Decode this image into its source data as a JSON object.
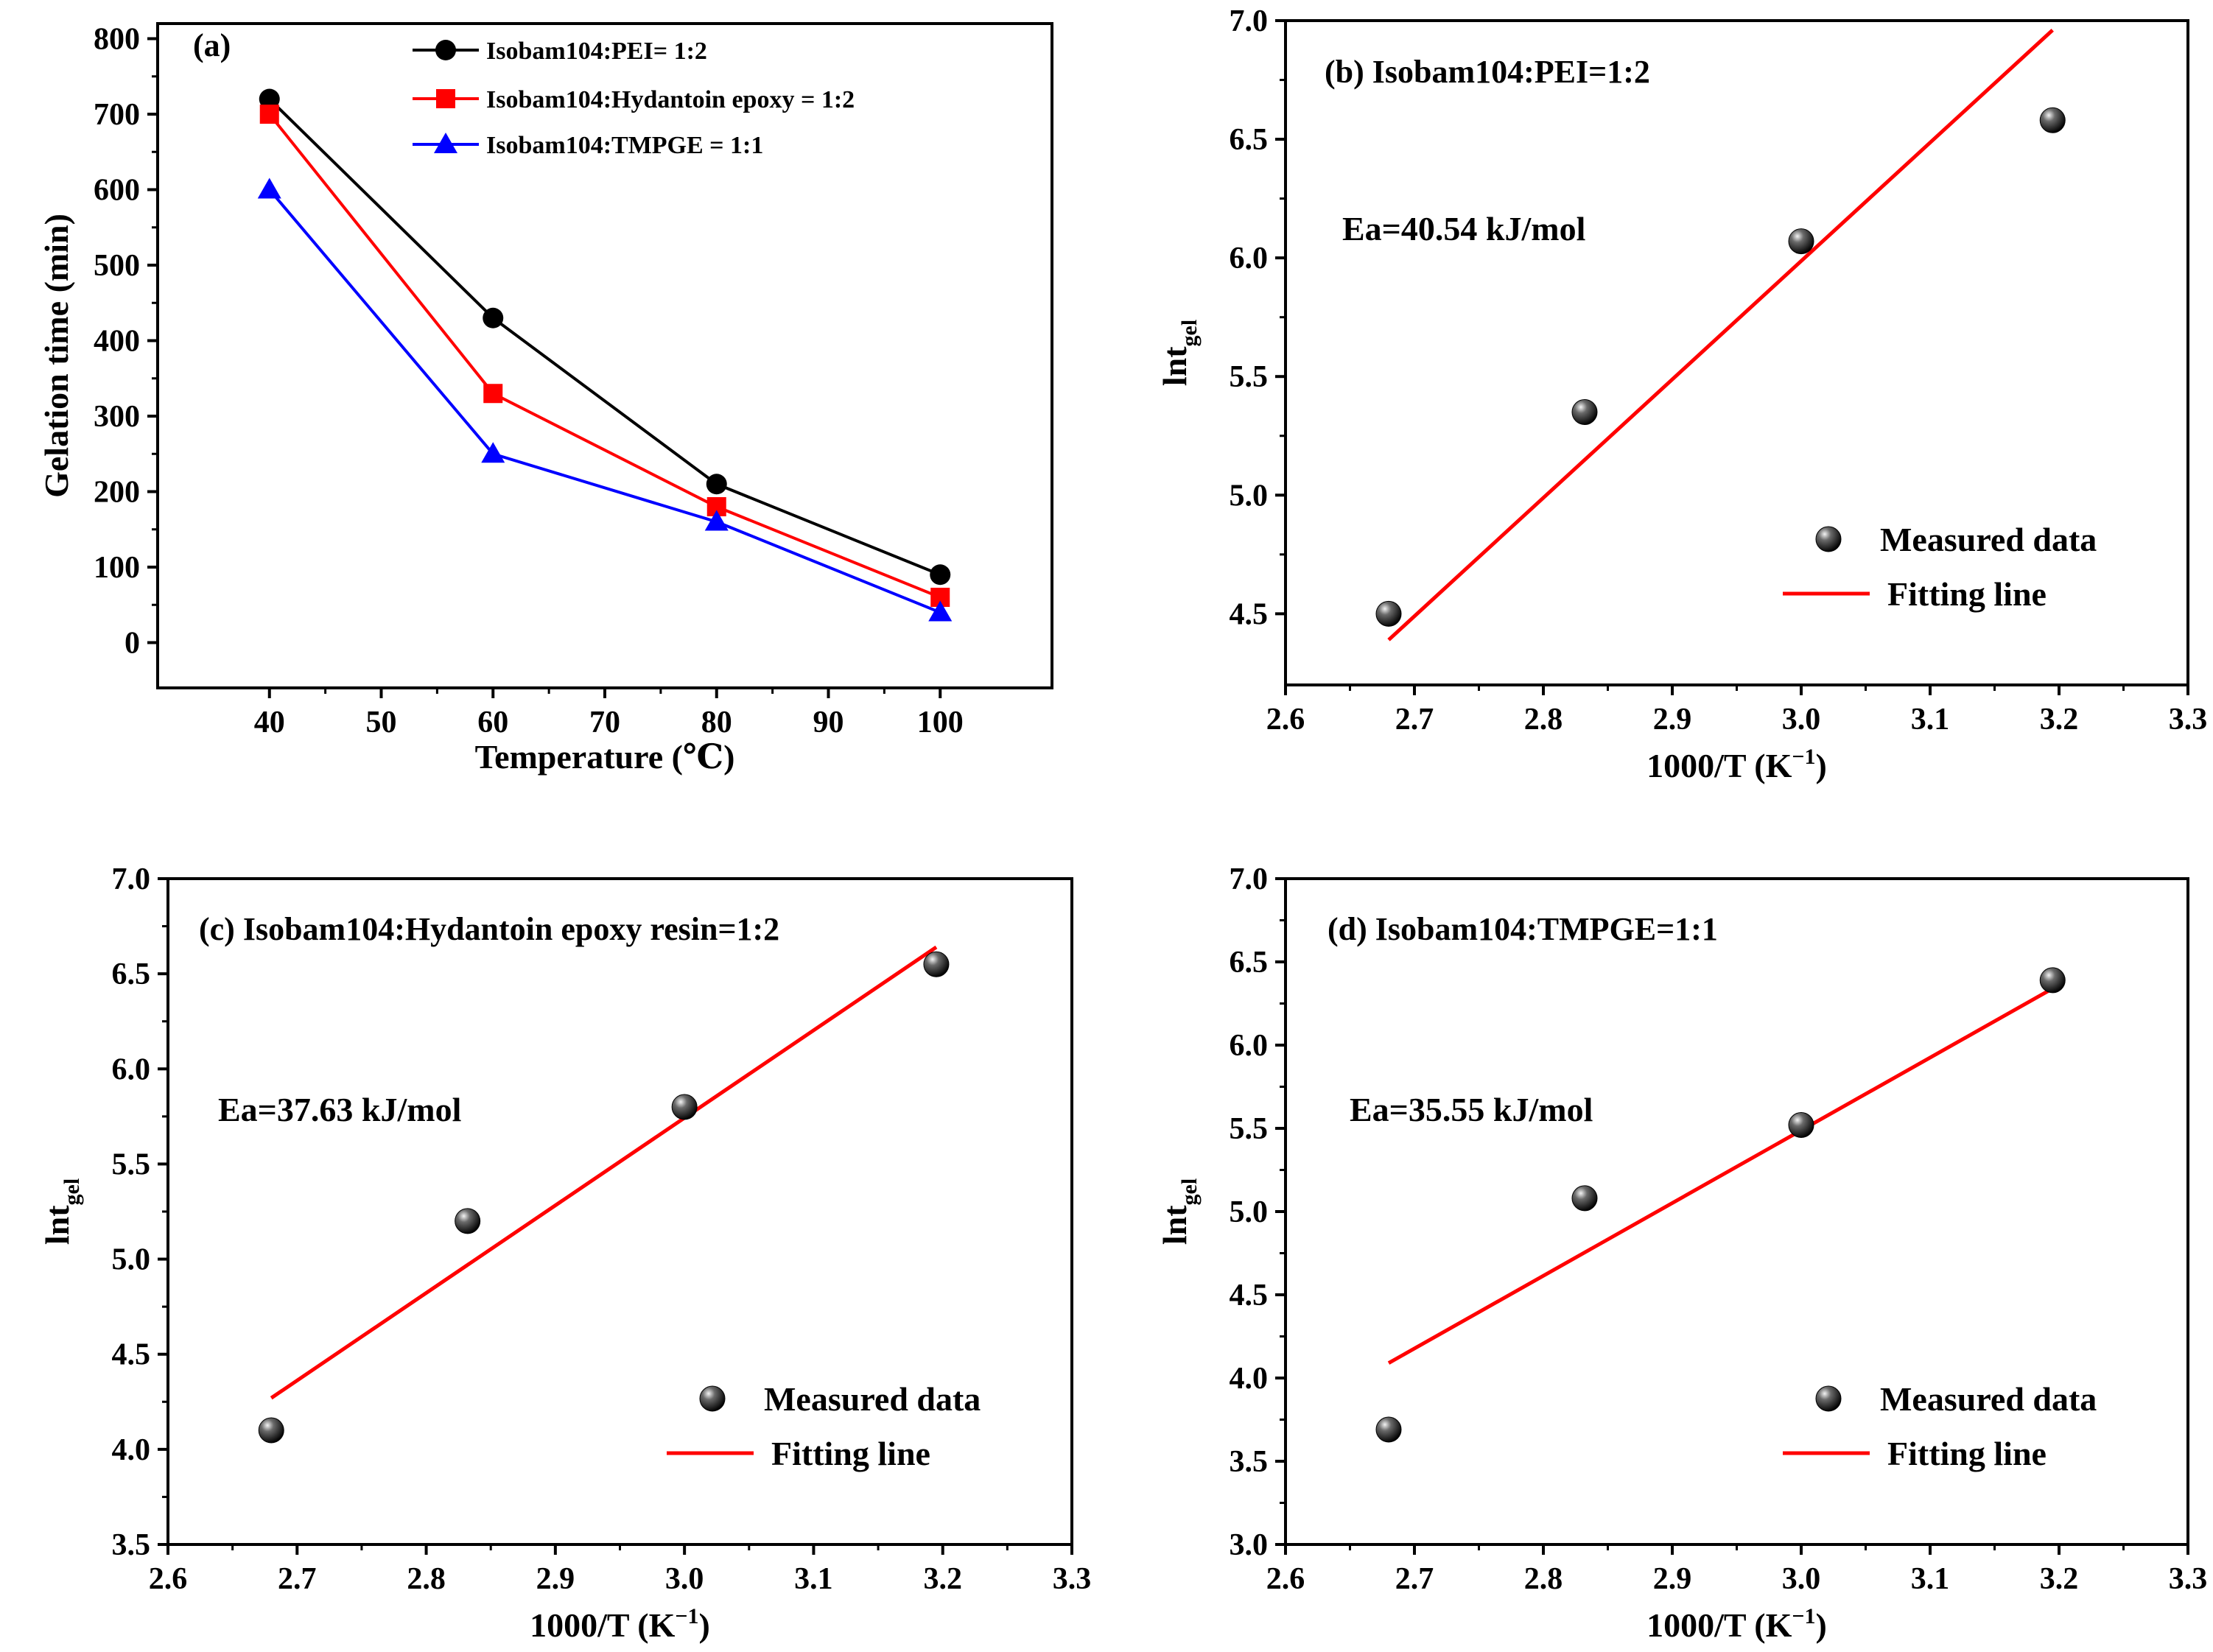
{
  "chart_data": [
    {
      "id": "a",
      "type": "line",
      "panel_label": "(a)",
      "xlabel": "Temperature (℃)",
      "ylabel": "Gelation time (min)",
      "xlim": [
        30,
        110
      ],
      "ylim": [
        -60,
        820
      ],
      "xticks": [
        40,
        50,
        60,
        70,
        80,
        90,
        100
      ],
      "yticks": [
        0,
        100,
        200,
        300,
        400,
        500,
        600,
        700,
        800
      ],
      "legend_position": "top-right",
      "series": [
        {
          "name": "Isobam104:PEI= 1:2",
          "color": "#000000",
          "marker": "circle",
          "x": [
            40,
            60,
            80,
            100
          ],
          "y": [
            720,
            430,
            210,
            90
          ]
        },
        {
          "name": "Isobam104:Hydantoin epoxy = 1:2",
          "color": "#ff0000",
          "marker": "square",
          "x": [
            40,
            60,
            80,
            100
          ],
          "y": [
            700,
            330,
            180,
            60
          ]
        },
        {
          "name": "Isobam104:TMPGE = 1:1",
          "color": "#0000ff",
          "marker": "triangle",
          "x": [
            40,
            60,
            80,
            100
          ],
          "y": [
            600,
            250,
            160,
            40
          ]
        }
      ]
    },
    {
      "id": "b",
      "type": "scatter",
      "panel_label": "(b) Isobam104:PEI=1:2",
      "annotation": "Ea=40.54 kJ/mol",
      "xlabel_main": "1000/T (K",
      "xlabel_sup": "−1",
      "xlabel_close": ")",
      "ylabel_main": "lnt",
      "ylabel_sub": "gel",
      "xlim": [
        2.6,
        3.3
      ],
      "ylim": [
        4.2,
        7.0
      ],
      "xticks": [
        "2.6",
        "2.7",
        "2.8",
        "2.9",
        "3.0",
        "3.1",
        "3.2",
        "3.3"
      ],
      "yticks": [
        "4.5",
        "5.0",
        "5.5",
        "6.0",
        "6.5",
        "7.0"
      ],
      "measured": {
        "x": [
          2.68,
          2.832,
          3.0,
          3.195
        ],
        "y": [
          4.5,
          5.35,
          6.07,
          6.58
        ]
      },
      "fit": {
        "x": [
          2.68,
          3.195
        ],
        "y": [
          4.39,
          6.96
        ]
      },
      "legend": {
        "measured_label": "Measured data",
        "fit_label": "Fitting line"
      },
      "fit_color": "#ff0000"
    },
    {
      "id": "c",
      "type": "scatter",
      "panel_label": "(c) Isobam104:Hydantoin epoxy resin=1:2",
      "annotation": "Ea=37.63 kJ/mol",
      "xlabel_main": "1000/T (K",
      "xlabel_sup": "−1",
      "xlabel_close": ")",
      "ylabel_main": "lnt",
      "ylabel_sub": "gel",
      "xlim": [
        2.6,
        3.3
      ],
      "ylim": [
        3.5,
        7.0
      ],
      "xticks": [
        "2.6",
        "2.7",
        "2.8",
        "2.9",
        "3.0",
        "3.1",
        "3.2",
        "3.3"
      ],
      "yticks": [
        "3.5",
        "4.0",
        "4.5",
        "5.0",
        "5.5",
        "6.0",
        "6.5",
        "7.0"
      ],
      "measured": {
        "x": [
          2.68,
          2.832,
          3.0,
          3.195
        ],
        "y": [
          4.1,
          5.2,
          5.8,
          6.55
        ]
      },
      "fit": {
        "x": [
          2.68,
          3.195
        ],
        "y": [
          4.27,
          6.64
        ]
      },
      "legend": {
        "measured_label": "Measured data",
        "fit_label": "Fitting line"
      },
      "fit_color": "#ff0000"
    },
    {
      "id": "d",
      "type": "scatter",
      "panel_label": "(d) Isobam104:TMPGE=1:1",
      "annotation": "Ea=35.55 kJ/mol",
      "xlabel_main": "1000/T (K",
      "xlabel_sup": "−1",
      "xlabel_close": ")",
      "ylabel_main": "lnt",
      "ylabel_sub": "gel",
      "xlim": [
        2.6,
        3.3
      ],
      "ylim": [
        3.0,
        7.0
      ],
      "xticks": [
        "2.6",
        "2.7",
        "2.8",
        "2.9",
        "3.0",
        "3.1",
        "3.2",
        "3.3"
      ],
      "yticks": [
        "3.0",
        "3.5",
        "4.0",
        "4.5",
        "5.0",
        "5.5",
        "6.0",
        "6.5",
        "7.0"
      ],
      "measured": {
        "x": [
          2.68,
          2.832,
          3.0,
          3.195
        ],
        "y": [
          3.69,
          5.08,
          5.52,
          6.39
        ]
      },
      "fit": {
        "x": [
          2.68,
          3.195
        ],
        "y": [
          4.09,
          6.34
        ]
      },
      "legend": {
        "measured_label": "Measured data",
        "fit_label": "Fitting line"
      },
      "fit_color": "#ff0000"
    }
  ]
}
